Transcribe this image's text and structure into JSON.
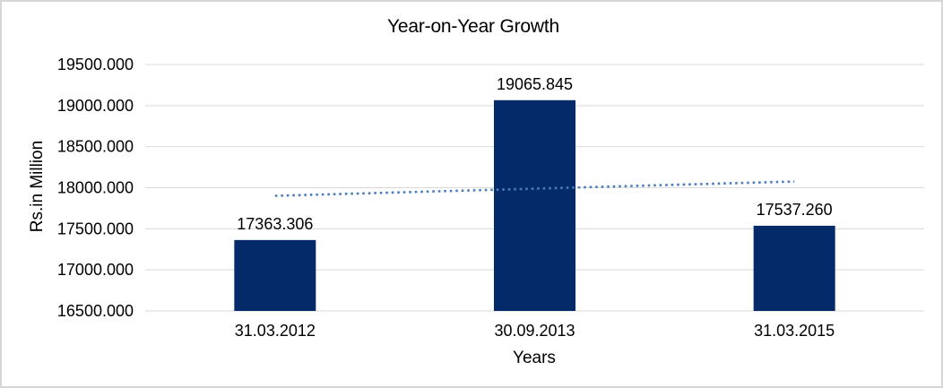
{
  "chart_data": {
    "type": "bar",
    "title": "Year-on-Year Growth",
    "xlabel": "Years",
    "ylabel": "Rs.in Million",
    "categories": [
      "31.03.2012",
      "30.09.2013",
      "31.03.2015"
    ],
    "values": [
      17363.306,
      19065.845,
      17537.26
    ],
    "value_labels": [
      "17363.306",
      "19065.845",
      "17537.260"
    ],
    "ylim": [
      16500,
      19500
    ],
    "ytick_step": 500,
    "ytick_values": [
      19500,
      19000,
      18500,
      18000,
      17500,
      17000,
      16500
    ],
    "ytick_labels": [
      "19500.000",
      "19000.000",
      "18500.000",
      "18000.000",
      "17500.000",
      "17000.000",
      "16500.000"
    ],
    "grid": true,
    "legend_position": "none",
    "bar_color": "#052a6a",
    "gridline_color": "#d9d9d9",
    "axis_line_color": "#d9d9d9",
    "text_color": "#000000",
    "trendline": {
      "type": "linear",
      "style": "dotted",
      "color": "#4a7ebb",
      "start_value": 17901.8,
      "end_value": 18075.8
    }
  }
}
